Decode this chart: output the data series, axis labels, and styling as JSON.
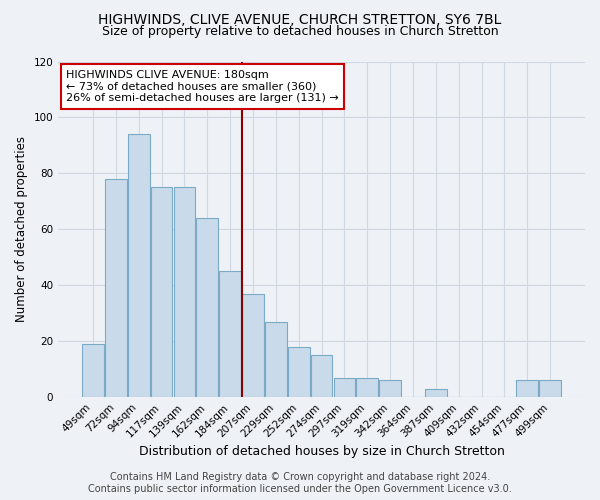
{
  "title": "HIGHWINDS, CLIVE AVENUE, CHURCH STRETTON, SY6 7BL",
  "subtitle": "Size of property relative to detached houses in Church Stretton",
  "xlabel": "Distribution of detached houses by size in Church Stretton",
  "ylabel": "Number of detached properties",
  "bar_color": "#c9daea",
  "bar_edge_color": "#7aaac5",
  "categories": [
    "49sqm",
    "72sqm",
    "94sqm",
    "117sqm",
    "139sqm",
    "162sqm",
    "184sqm",
    "207sqm",
    "229sqm",
    "252sqm",
    "274sqm",
    "297sqm",
    "319sqm",
    "342sqm",
    "364sqm",
    "387sqm",
    "409sqm",
    "432sqm",
    "454sqm",
    "477sqm",
    "499sqm"
  ],
  "values": [
    19,
    78,
    94,
    75,
    75,
    64,
    45,
    37,
    27,
    18,
    15,
    7,
    7,
    6,
    0,
    3,
    0,
    0,
    0,
    6,
    6
  ],
  "ylim": [
    0,
    120
  ],
  "yticks": [
    0,
    20,
    40,
    60,
    80,
    100,
    120
  ],
  "marker_label": "HIGHWINDS CLIVE AVENUE: 180sqm",
  "annotation_line1": "← 73% of detached houses are smaller (360)",
  "annotation_line2": "26% of semi-detached houses are larger (131) →",
  "annotation_box_color": "#ffffff",
  "annotation_box_edge": "#cc0000",
  "marker_line_color": "#8b0000",
  "footer1": "Contains HM Land Registry data © Crown copyright and database right 2024.",
  "footer2": "Contains public sector information licensed under the Open Government Licence v3.0.",
  "title_fontsize": 10,
  "subtitle_fontsize": 9,
  "xlabel_fontsize": 9,
  "ylabel_fontsize": 8.5,
  "tick_fontsize": 7.5,
  "footer_fontsize": 7,
  "annotation_fontsize": 8,
  "background_color": "#eef2f7",
  "grid_color": "#d0d8e4"
}
